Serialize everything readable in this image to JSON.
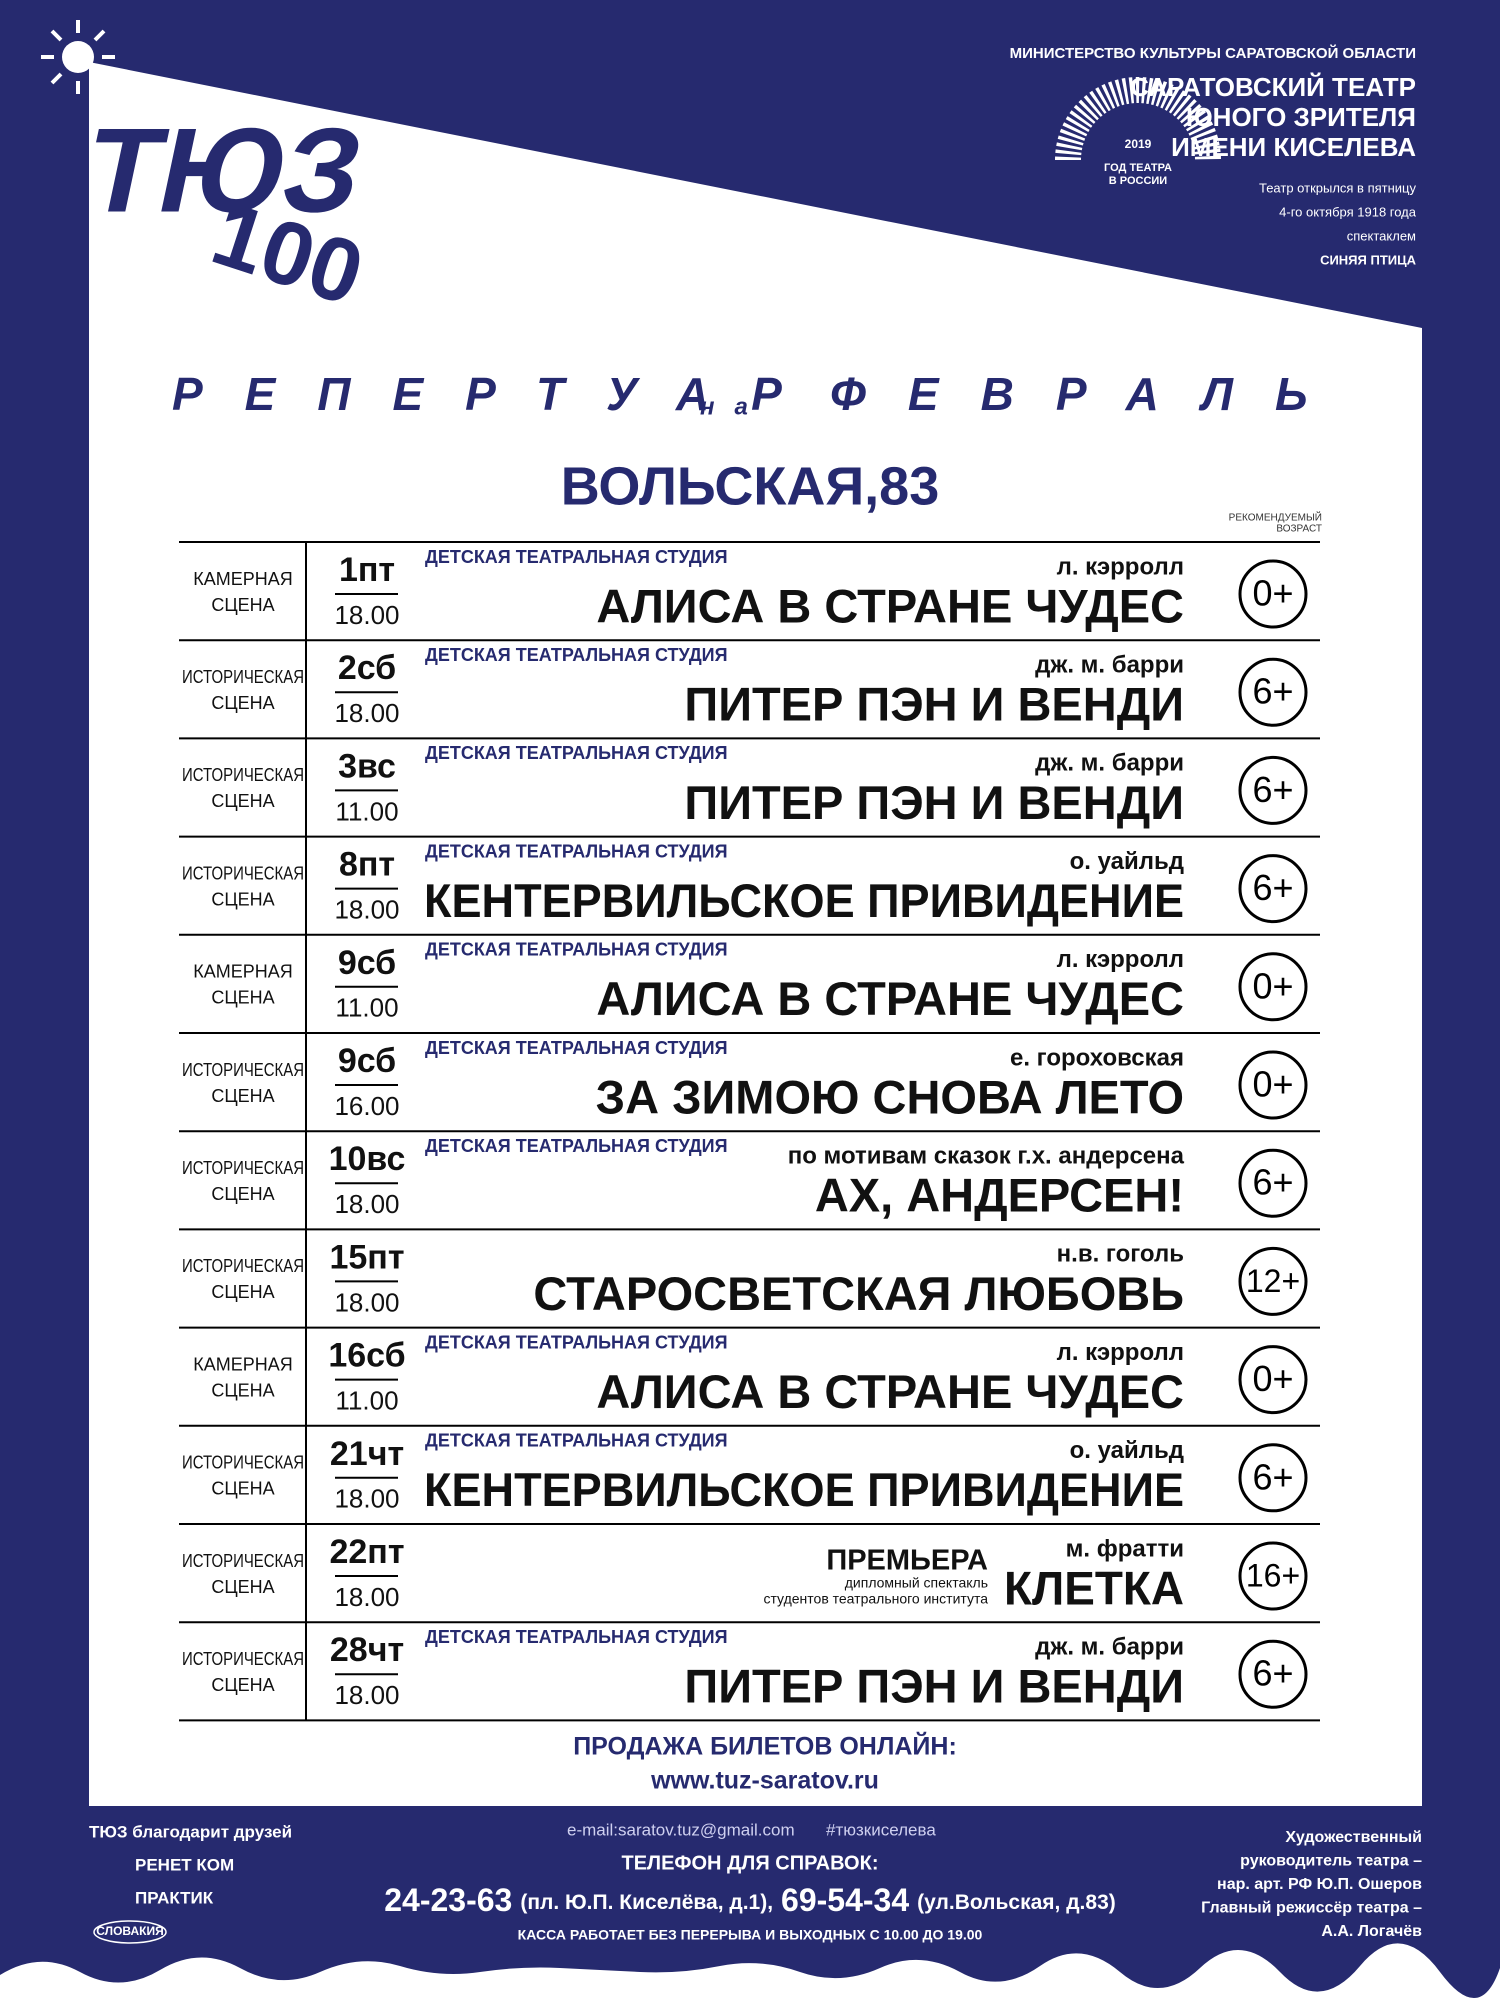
{
  "header": {
    "logo": {
      "name": "ТЮЗ",
      "number": "100"
    },
    "ministry": "МИНИСТЕРСТВО КУЛЬТУРЫ САРАТОВСКОЙ ОБЛАСТИ",
    "theatre": [
      "САРАТОВСКИЙ ТЕАТР",
      "ЮНОГО ЗРИТЕЛЯ",
      "ИМЕНИ КИСЕЛЕВА"
    ],
    "emblem": {
      "year": "2019",
      "lines": [
        "ГОД ТЕАТРА",
        "В РОССИИ"
      ]
    },
    "history": [
      "Театр открылся в пятницу",
      "4-го октября 1918 года",
      "спектаклем",
      "СИНЯЯ ПТИЦА"
    ]
  },
  "title": {
    "word1": "РЕПЕРТУАР",
    "word2": "на",
    "word3": "ФЕВРАЛЬ"
  },
  "address": "ВОЛЬСКАЯ,83",
  "age_header": [
    "РЕКОМЕНДУЕМЫЙ",
    "ВОЗРАСТ"
  ],
  "rows": [
    {
      "stage": [
        "КАМЕРНАЯ",
        "СЦЕНА"
      ],
      "day": "1пт",
      "time": "18.00",
      "studio": "ДЕТСКАЯ ТЕАТРАЛЬНАЯ СТУДИЯ",
      "author": "л. кэрролл",
      "title": "АЛИСА В СТРАНЕ ЧУДЕС",
      "age": "0+"
    },
    {
      "stage": [
        "ИСТОРИЧЕСКАЯ",
        "СЦЕНА"
      ],
      "day": "2сб",
      "time": "18.00",
      "studio": "ДЕТСКАЯ ТЕАТРАЛЬНАЯ СТУДИЯ",
      "author": "дж. м. барри",
      "title": "ПИТЕР ПЭН И ВЕНДИ",
      "age": "6+"
    },
    {
      "stage": [
        "ИСТОРИЧЕСКАЯ",
        "СЦЕНА"
      ],
      "day": "3вс",
      "time": "11.00",
      "studio": "ДЕТСКАЯ ТЕАТРАЛЬНАЯ СТУДИЯ",
      "author": "дж. м. барри",
      "title": "ПИТЕР ПЭН И ВЕНДИ",
      "age": "6+"
    },
    {
      "stage": [
        "ИСТОРИЧЕСКАЯ",
        "СЦЕНА"
      ],
      "day": "8пт",
      "time": "18.00",
      "studio": "ДЕТСКАЯ ТЕАТРАЛЬНАЯ СТУДИЯ",
      "author": "о. уайльд",
      "title": "КЕНТЕРВИЛЬСКОЕ  ПРИВИДЕНИЕ",
      "age": "6+"
    },
    {
      "stage": [
        "КАМЕРНАЯ",
        "СЦЕНА"
      ],
      "day": "9сб",
      "time": "11.00",
      "studio": "ДЕТСКАЯ ТЕАТРАЛЬНАЯ СТУДИЯ",
      "author": "л. кэрролл",
      "title": "АЛИСА В СТРАНЕ ЧУДЕС",
      "age": "0+"
    },
    {
      "stage": [
        "ИСТОРИЧЕСКАЯ",
        "СЦЕНА"
      ],
      "day": "9сб",
      "time": "16.00",
      "studio": "ДЕТСКАЯ ТЕАТРАЛЬНАЯ СТУДИЯ",
      "author": "е. гороховская",
      "title": "ЗА ЗИМОЮ СНОВА ЛЕТО",
      "age": "0+"
    },
    {
      "stage": [
        "ИСТОРИЧЕСКАЯ",
        "СЦЕНА"
      ],
      "day": "10вс",
      "time": "18.00",
      "studio": "ДЕТСКАЯ ТЕАТРАЛЬНАЯ СТУДИЯ",
      "author": "по мотивам сказок г.х. андерсена",
      "title": "АХ, АНДЕРСЕН!",
      "age": "6+"
    },
    {
      "stage": [
        "ИСТОРИЧЕСКАЯ",
        "СЦЕНА"
      ],
      "day": "15пт",
      "time": "18.00",
      "author": "н.в. гоголь",
      "title": "СТАРОСВЕТСКАЯ ЛЮБОВЬ",
      "age": "12+"
    },
    {
      "stage": [
        "КАМЕРНАЯ",
        "СЦЕНА"
      ],
      "day": "16сб",
      "time": "11.00",
      "studio": "ДЕТСКАЯ ТЕАТРАЛЬНАЯ СТУДИЯ",
      "author": "л. кэрролл",
      "title": "АЛИСА В СТРАНЕ ЧУДЕС",
      "age": "0+"
    },
    {
      "stage": [
        "ИСТОРИЧЕСКАЯ",
        "СЦЕНА"
      ],
      "day": "21чт",
      "time": "18.00",
      "studio": "ДЕТСКАЯ ТЕАТРАЛЬНАЯ СТУДИЯ",
      "author": "о. уайльд",
      "title": "КЕНТЕРВИЛЬСКОЕ  ПРИВИДЕНИЕ",
      "age": "6+"
    },
    {
      "stage": [
        "ИСТОРИЧЕСКАЯ",
        "СЦЕНА"
      ],
      "day": "22пт",
      "time": "18.00",
      "premiere": {
        "label": "ПРЕМЬЕРА",
        "lines": [
          "дипломный спектакль",
          "студентов театрального института"
        ]
      },
      "author": "м. фратти",
      "title": "КЛЕТКА",
      "age": "16+"
    },
    {
      "stage": [
        "ИСТОРИЧЕСКАЯ",
        "СЦЕНА"
      ],
      "day": "28чт",
      "time": "18.00",
      "studio": "ДЕТСКАЯ ТЕАТРАЛЬНАЯ СТУДИЯ",
      "author": "дж. м. барри",
      "title": "ПИТЕР ПЭН И ВЕНДИ",
      "age": "6+"
    }
  ],
  "online": {
    "label": "ПРОДАЖА БИЛЕТОВ ОНЛАЙН:",
    "url": "www.tuz-saratov.ru"
  },
  "footer": {
    "thanks": "ТЮЗ благодарит друзей",
    "sponsors": [
      "РЕНЕТ КОМ",
      "ПРАКТИК",
      "СЛОВАКИЯ"
    ],
    "email": "e-mail:saratov.tuz@gmail.com",
    "hashtag": "#тюзкиселева",
    "phone_label": "ТЕЛЕФОН ДЛЯ СПРАВОК:",
    "phone1": "24-23-63",
    "place1": "(пл. Ю.П. Киселёва, д.1),",
    "phone2": "69-54-34",
    "place2": "(ул.Вольская, д.83)",
    "cashier": "КАССА РАБОТАЕТ БЕЗ ПЕРЕРЫВА И ВЫХОДНЫХ С 10.00 ДО 19.00",
    "credits": [
      "Художественный",
      "руководитель театра –",
      "нар. арт. РФ Ю.П. Ошеров",
      "Главный режиссёр театра –",
      "А.А. Логачёв"
    ]
  }
}
